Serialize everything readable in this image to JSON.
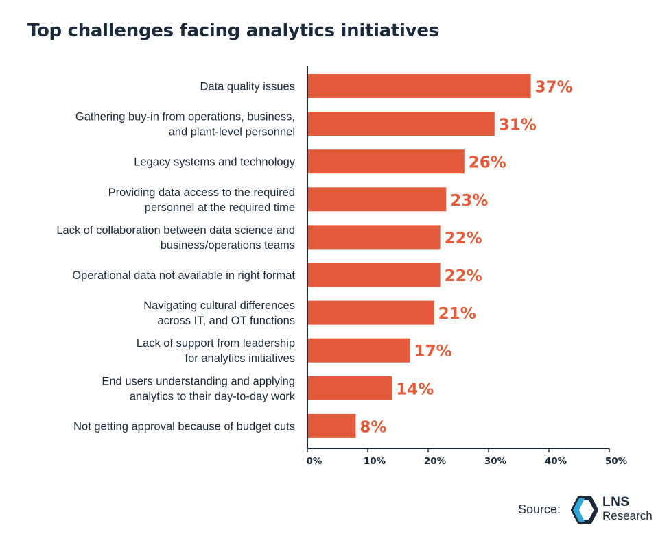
{
  "title": "Top challenges facing analytics initiatives",
  "colors": {
    "bar": "#e35b3b",
    "label": "#e35b3b",
    "text": "#1a2a3a",
    "axis": "#1a2a3a"
  },
  "chart_data": {
    "type": "bar",
    "orientation": "horizontal",
    "categories": [
      [
        "Data quality issues"
      ],
      [
        "Gathering buy-in from operations, business,",
        "and plant-level personnel"
      ],
      [
        "Legacy systems and technology"
      ],
      [
        "Providing data access to the required",
        "personnel at the required time"
      ],
      [
        "Lack of collaboration between data science and",
        "business/operations teams"
      ],
      [
        "Operational data not available in right format"
      ],
      [
        "Navigating cultural differences",
        "across IT, and OT functions"
      ],
      [
        "Lack of support from leadership",
        "for analytics initiatives"
      ],
      [
        "End users understanding and applying",
        "analytics to their day-to-day work"
      ],
      [
        "Not getting approval because of budget cuts"
      ]
    ],
    "values": [
      37,
      31,
      26,
      23,
      22,
      22,
      21,
      17,
      14,
      8
    ],
    "value_labels": [
      "37%",
      "31%",
      "26%",
      "23%",
      "22%",
      "22%",
      "21%",
      "17%",
      "14%",
      "8%"
    ],
    "xlim": [
      0,
      50
    ],
    "x_ticks": [
      "0%",
      "10%",
      "20%",
      "30%",
      "40%",
      "50%"
    ],
    "x_tick_values": [
      0,
      10,
      20,
      30,
      40,
      50
    ],
    "grid": false
  },
  "footer": {
    "source_label": "Source:",
    "logo_line1": "LNS",
    "logo_line2": "Research"
  }
}
